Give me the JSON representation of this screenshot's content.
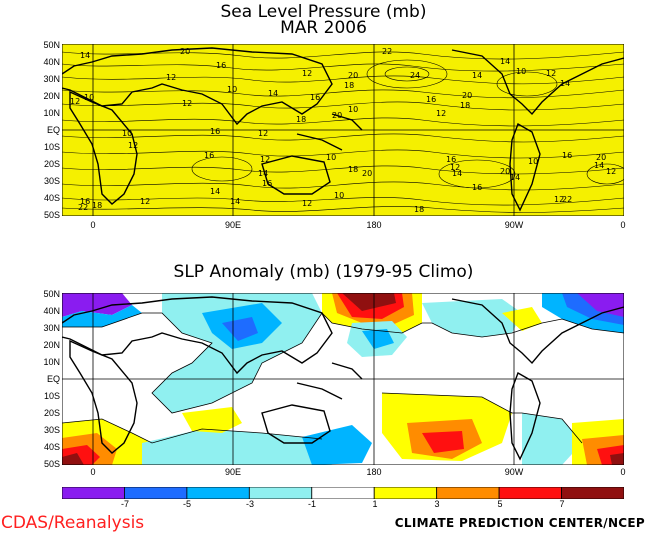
{
  "top_panel": {
    "title": "Sea Level Pressure (mb)",
    "subtitle": "MAR 2006",
    "fill_color": "#f5f000",
    "contour_labels": [
      "14",
      "20",
      "16",
      "12",
      "10",
      "14",
      "12",
      "16",
      "22",
      "24",
      "20",
      "18",
      "20",
      "18",
      "14",
      "16",
      "12",
      "10",
      "12",
      "10",
      "12",
      "16",
      "12",
      "10",
      "12",
      "14",
      "16",
      "16",
      "20",
      "18",
      "12",
      "16",
      "12",
      "14",
      "16",
      "20",
      "10",
      "18",
      "20",
      "14",
      "12",
      "16",
      "22",
      "18",
      "14",
      "12",
      "10",
      "18",
      "14",
      "10",
      "16",
      "20",
      "14",
      "12",
      "22",
      "12",
      "14",
      "10",
      "12",
      "14"
    ]
  },
  "bottom_panel": {
    "title": "SLP Anomaly (mb) (1979-95 Climo)"
  },
  "lat_labels": [
    "50N",
    "40N",
    "30N",
    "20N",
    "10N",
    "EQ",
    "10S",
    "20S",
    "30S",
    "40S",
    "50S"
  ],
  "lon_labels": [
    "0",
    "90E",
    "180",
    "90W",
    "0"
  ],
  "colorbar": {
    "colors": [
      "#8a1cf0",
      "#1e6cff",
      "#00b4ff",
      "#90f0f0",
      "#ffffff",
      "#ffff00",
      "#ff8c00",
      "#ff1010",
      "#901010"
    ],
    "labels": [
      "-7",
      "-5",
      "-3",
      "-1",
      "1",
      "3",
      "5",
      "7"
    ]
  },
  "credits": {
    "left": "CDAS/Reanalysis",
    "right": "CLIMATE PREDICTION CENTER/NCEP",
    "left_color": "#ff2020"
  }
}
